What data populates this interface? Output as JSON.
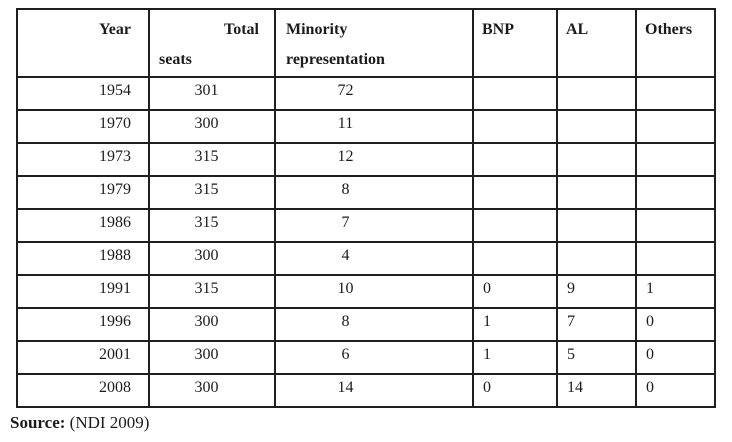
{
  "table": {
    "header": {
      "year": "Year",
      "total_line1": "Total",
      "total_line2": "seats",
      "minority_line1": "Minority",
      "minority_line2": "representation",
      "bnp": "BNP",
      "al": "AL",
      "others": "Others"
    },
    "column_keys": [
      "year",
      "total-seats",
      "minority-representation",
      "bnp",
      "al",
      "others"
    ],
    "rows": [
      [
        "1954",
        "301",
        "72",
        "",
        "",
        ""
      ],
      [
        "1970",
        "300",
        "11",
        "",
        "",
        ""
      ],
      [
        "1973",
        "315",
        "12",
        "",
        "",
        ""
      ],
      [
        "1979",
        "315",
        "8",
        "",
        "",
        ""
      ],
      [
        "1986",
        "315",
        "7",
        "",
        "",
        ""
      ],
      [
        "1988",
        "300",
        "4",
        "",
        "",
        ""
      ],
      [
        "1991",
        "315",
        "10",
        "0",
        "9",
        "1"
      ],
      [
        "1996",
        "300",
        "8",
        "1",
        "7",
        "0"
      ],
      [
        "2001",
        "300",
        "6",
        "1",
        "5",
        "0"
      ],
      [
        "2008",
        "300",
        "14",
        "0",
        "14",
        "0"
      ]
    ]
  },
  "source": {
    "label": "Source:",
    "citation": " (NDI 2009)"
  },
  "chart_data": {
    "type": "table",
    "title": "",
    "columns": [
      "Year",
      "Total seats",
      "Minority representation",
      "BNP",
      "AL",
      "Others"
    ],
    "rows": [
      [
        "1954",
        301,
        72,
        null,
        null,
        null
      ],
      [
        "1970",
        300,
        11,
        null,
        null,
        null
      ],
      [
        "1973",
        315,
        12,
        null,
        null,
        null
      ],
      [
        "1979",
        315,
        8,
        null,
        null,
        null
      ],
      [
        "1986",
        315,
        7,
        null,
        null,
        null
      ],
      [
        "1988",
        300,
        4,
        null,
        null,
        null
      ],
      [
        "1991",
        315,
        10,
        0,
        9,
        1
      ],
      [
        "1996",
        300,
        8,
        1,
        7,
        0
      ],
      [
        "2001",
        300,
        6,
        1,
        5,
        0
      ],
      [
        "2008",
        300,
        14,
        0,
        14,
        0
      ]
    ],
    "source_note": "Source: (NDI 2009)"
  }
}
